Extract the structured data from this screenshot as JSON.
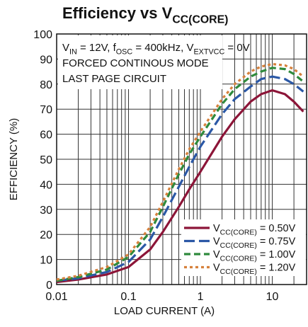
{
  "chart_data": {
    "type": "line",
    "title": [
      "Efficiency vs V",
      "CC(CORE)"
    ],
    "annotations": [
      [
        "V",
        "IN",
        " = 12V, f",
        "OSC",
        " = 400kHz, V",
        "EXTVCC",
        " = 0V"
      ],
      [
        "FORCED CONTINOUS MODE"
      ],
      [
        "LAST PAGE CIRCUIT"
      ]
    ],
    "xlabel": "LOAD CURRENT (A)",
    "ylabel": "EFFICIENCY (%)",
    "xscale": "log",
    "xlim": [
      0.01,
      30
    ],
    "ylim": [
      0,
      100
    ],
    "xticks": [
      0.01,
      0.1,
      1,
      10
    ],
    "xminor": [
      0.02,
      0.03,
      0.04,
      0.05,
      0.06,
      0.07,
      0.08,
      0.09,
      0.2,
      0.3,
      0.4,
      0.5,
      0.6,
      0.7,
      0.8,
      0.9,
      2,
      3,
      4,
      5,
      6,
      7,
      8,
      9,
      20
    ],
    "yticks": [
      0,
      10,
      20,
      30,
      40,
      50,
      60,
      70,
      80,
      90,
      100
    ],
    "grid": true,
    "legend": "lower right",
    "x": [
      0.01,
      0.02,
      0.05,
      0.1,
      0.2,
      0.3,
      0.5,
      0.7,
      1,
      2,
      3,
      5,
      7,
      10,
      15,
      20,
      27
    ],
    "series": [
      {
        "name": [
          "V",
          "CC(CORE)",
          " = 0.50V"
        ],
        "color": "#8c1538",
        "dash": "solid",
        "values": [
          1,
          2,
          4,
          7,
          14,
          21,
          31,
          38,
          45,
          59,
          66,
          73,
          76,
          77.5,
          76,
          73,
          69
        ]
      },
      {
        "name": [
          "V",
          "CC(CORE)",
          " = 0.75V"
        ],
        "color": "#2b58a6",
        "dash": "long",
        "values": [
          1.5,
          2.5,
          5,
          9,
          18,
          27,
          39,
          47,
          55,
          68,
          74,
          79,
          82,
          83,
          82,
          80,
          77
        ]
      },
      {
        "name": [
          "V",
          "CC(CORE)",
          " = 1.00V"
        ],
        "color": "#2f8a3c",
        "dash": "medium",
        "values": [
          1.5,
          3,
          6,
          11,
          21,
          31,
          44,
          52,
          59,
          72,
          78,
          83,
          85,
          86.5,
          86,
          84,
          81
        ]
      },
      {
        "name": [
          "V",
          "CC(CORE)",
          " = 1.20V"
        ],
        "color": "#d6813c",
        "dash": "short",
        "values": [
          2,
          3.5,
          7,
          12,
          23,
          33,
          46,
          54,
          61,
          74,
          80,
          85,
          87,
          88,
          87.5,
          86,
          83
        ]
      }
    ]
  }
}
